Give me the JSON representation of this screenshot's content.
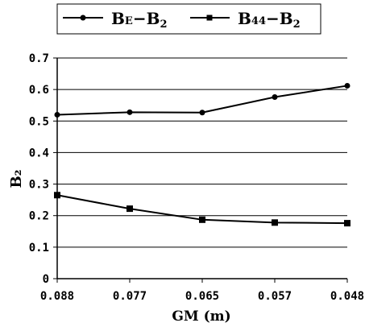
{
  "chart_data": {
    "type": "line",
    "title": "",
    "xlabel": "GM (m)",
    "ylabel": "B₂",
    "categories": [
      "0.088",
      "0.077",
      "0.065",
      "0.057",
      "0.048"
    ],
    "ylim": [
      0,
      0.7
    ],
    "yticks": [
      "0",
      "0.1",
      "0.2",
      "0.3",
      "0.4",
      "0.5",
      "0.6",
      "0.7"
    ],
    "grid": "horizontal",
    "legend_position": "top",
    "series": [
      {
        "name": "B_E − B_2",
        "label_main": "B",
        "label_sub1": "E",
        "label_mid": "−B",
        "label_sub2": "2",
        "marker": "circle",
        "values": [
          0.52,
          0.528,
          0.527,
          0.576,
          0.612
        ]
      },
      {
        "name": "B_44 − B_2",
        "label_main": "B",
        "label_sub1": "44",
        "label_mid": "−B",
        "label_sub2": "2",
        "marker": "square",
        "values": [
          0.265,
          0.222,
          0.187,
          0.178,
          0.176
        ]
      }
    ]
  }
}
